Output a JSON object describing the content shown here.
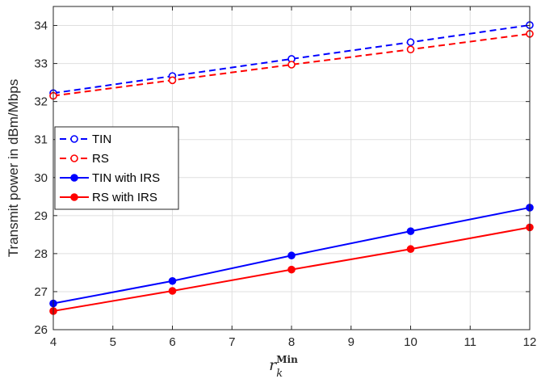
{
  "chart_data": {
    "type": "line",
    "title": "",
    "xlabel": {
      "base": "r",
      "sub": "k",
      "sup": "Min"
    },
    "ylabel": "Transmit power in dBm/Mbps",
    "xlim": [
      4,
      12
    ],
    "ylim": [
      26,
      34.5
    ],
    "xticks": [
      4,
      5,
      6,
      7,
      8,
      9,
      10,
      11,
      12
    ],
    "yticks": [
      26,
      27,
      28,
      29,
      30,
      31,
      32,
      33,
      34
    ],
    "grid": true,
    "legend_position": "center-left",
    "x": [
      4,
      6,
      8,
      10,
      12
    ],
    "series": [
      {
        "name": "TIN",
        "values": [
          32.22,
          32.67,
          33.12,
          33.56,
          34.01
        ],
        "color": "#0000ff",
        "line": "dashed",
        "marker": "open-circle"
      },
      {
        "name": "RS",
        "values": [
          32.15,
          32.56,
          32.97,
          33.37,
          33.78
        ],
        "color": "#ff0000",
        "line": "dashed",
        "marker": "open-circle"
      },
      {
        "name": "TIN with IRS",
        "values": [
          26.69,
          27.28,
          27.95,
          28.59,
          29.21
        ],
        "color": "#0000ff",
        "line": "solid",
        "marker": "filled-circle"
      },
      {
        "name": "RS with IRS",
        "values": [
          26.49,
          27.02,
          27.58,
          28.12,
          28.69
        ],
        "color": "#ff0000",
        "line": "solid",
        "marker": "filled-circle"
      }
    ]
  }
}
